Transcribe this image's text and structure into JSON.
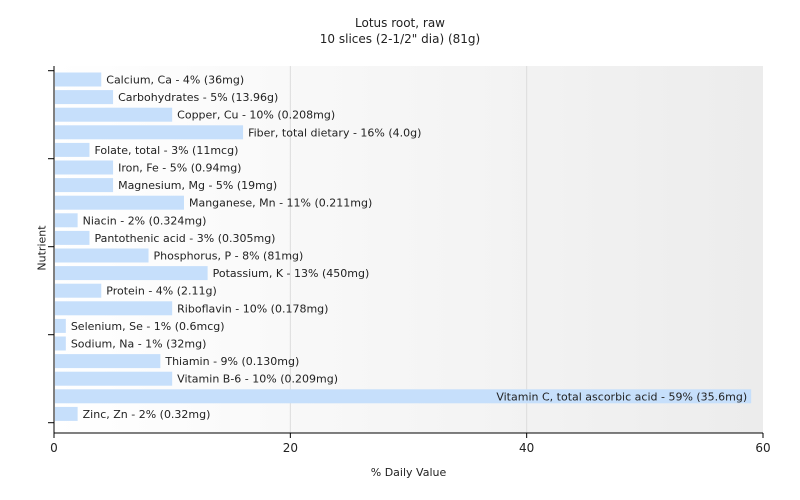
{
  "chart_data": {
    "type": "bar",
    "orientation": "horizontal",
    "title": "Lotus root, raw",
    "subtitle": "10 slices (2-1/2\" dia) (81g)",
    "xlabel": "% Daily Value",
    "ylabel": "Nutrient",
    "xlim": [
      0,
      60
    ],
    "xticks": [
      "0",
      "20",
      "40",
      "60"
    ],
    "grid": true,
    "bar_color": "#c6dffb",
    "categories": [
      "Calcium, Ca",
      "Carbohydrates",
      "Copper, Cu",
      "Fiber, total dietary",
      "Folate, total",
      "Iron, Fe",
      "Magnesium, Mg",
      "Manganese, Mn",
      "Niacin",
      "Pantothenic acid",
      "Phosphorus, P",
      "Potassium, K",
      "Protein",
      "Riboflavin",
      "Selenium, Se",
      "Sodium, Na",
      "Thiamin",
      "Vitamin B-6",
      "Vitamin C, total ascorbic acid",
      "Zinc, Zn"
    ],
    "values": [
      4,
      5,
      10,
      16,
      3,
      5,
      5,
      11,
      2,
      3,
      8,
      13,
      4,
      10,
      1,
      1,
      9,
      10,
      59,
      2
    ],
    "labels": [
      "Calcium, Ca - 4% (36mg)",
      "Carbohydrates - 5% (13.96g)",
      "Copper, Cu - 10% (0.208mg)",
      "Fiber, total dietary - 16% (4.0g)",
      "Folate, total - 3% (11mcg)",
      "Iron, Fe - 5% (0.94mg)",
      "Magnesium, Mg - 5% (19mg)",
      "Manganese, Mn - 11% (0.211mg)",
      "Niacin - 2% (0.324mg)",
      "Pantothenic acid - 3% (0.305mg)",
      "Phosphorus, P - 8% (81mg)",
      "Potassium, K - 13% (450mg)",
      "Protein - 4% (2.11g)",
      "Riboflavin - 10% (0.178mg)",
      "Selenium, Se - 1% (0.6mcg)",
      "Sodium, Na - 1% (32mg)",
      "Thiamin - 9% (0.130mg)",
      "Vitamin B-6 - 10% (0.209mg)",
      "Vitamin C, total ascorbic acid - 59% (35.6mg)",
      "Zinc, Zn - 2% (0.32mg)"
    ]
  }
}
